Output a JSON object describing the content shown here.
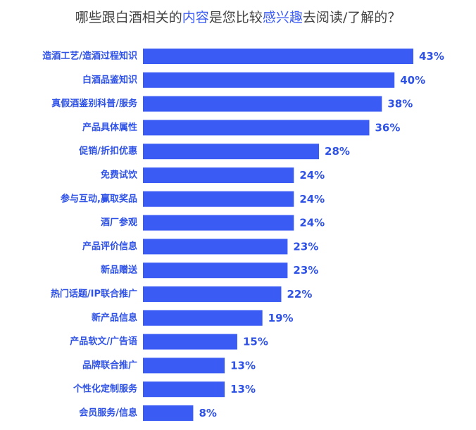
{
  "chart_data": {
    "type": "bar",
    "orientation": "horizontal",
    "title_parts": [
      {
        "text": "哪些跟白酒相关的",
        "highlight": false
      },
      {
        "text": "内容",
        "highlight": true
      },
      {
        "text": "是您比较",
        "highlight": false
      },
      {
        "text": "感兴趣",
        "highlight": true
      },
      {
        "text": "去阅读/了解的？",
        "highlight": false
      }
    ],
    "categories": [
      "造酒工艺/造酒过程知识",
      "白酒品鉴知识",
      "真假酒鉴别科普/服务",
      "产品具体属性",
      "促销/折扣优惠",
      "免费试饮",
      "参与互动,赢取奖品",
      "酒厂参观",
      "产品评价信息",
      "新品赠送",
      "热门话题/IP联合推广",
      "新产品信息",
      "产品软文/广告语",
      "品牌联合推广",
      "个性化定制服务",
      "会员服务/信息"
    ],
    "values": [
      43,
      40,
      38,
      36,
      28,
      24,
      24,
      24,
      23,
      23,
      22,
      19,
      15,
      13,
      13,
      8
    ],
    "value_suffix": "%",
    "xlim": [
      0,
      43
    ],
    "grid": false,
    "legend": "none",
    "bar_color": "#3B5BF5",
    "text_color": "#2F52E6",
    "highlight_color": "#3B5BF5"
  }
}
